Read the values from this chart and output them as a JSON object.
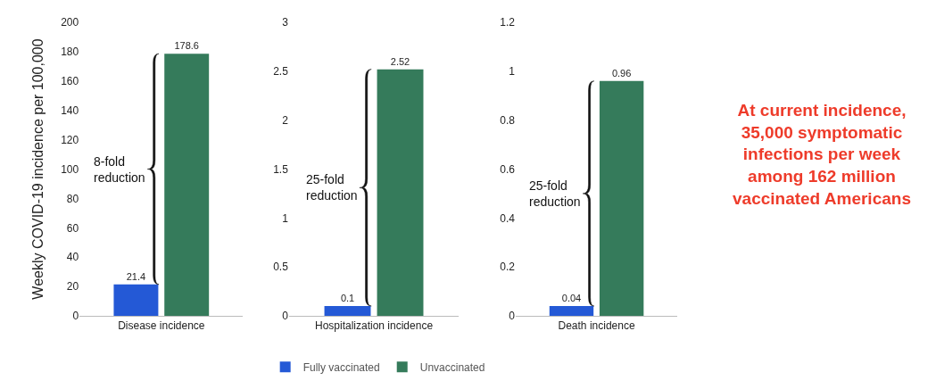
{
  "chart_data": [
    {
      "type": "bar",
      "ylabel": "Weekly COVID-19 incidence per 100,000",
      "categories": [
        "Disease incidence"
      ],
      "series": [
        {
          "name": "Fully vaccinated",
          "color": "#2459d6",
          "values": [
            21.4
          ]
        },
        {
          "name": "Unvaccinated",
          "color": "#357b5b",
          "values": [
            178.6
          ]
        }
      ],
      "ylim": [
        0,
        200
      ],
      "yticks": [
        0,
        20,
        40,
        60,
        80,
        100,
        120,
        140,
        160,
        180,
        200
      ],
      "data_labels": true,
      "grid": false,
      "legend": "bottom",
      "annotations": [
        "8-fold\nreduction"
      ]
    },
    {
      "type": "bar",
      "categories": [
        "Hospitalization incidence"
      ],
      "series": [
        {
          "color": "#2459d6",
          "values": [
            0.1
          ]
        },
        {
          "color": "#357b5b",
          "values": [
            2.52
          ]
        }
      ],
      "ylim": [
        0,
        3
      ],
      "yticks": [
        0,
        0.5,
        1,
        1.5,
        2,
        2.5,
        3
      ],
      "data_labels": true,
      "grid": false,
      "legend": false,
      "annotations": [
        "25-fold\nreduction"
      ]
    },
    {
      "type": "bar",
      "categories": [
        "Death incidence"
      ],
      "series": [
        {
          "color": "#2459d6",
          "values": [
            0.04
          ]
        },
        {
          "color": "#357b5b",
          "values": [
            0.96
          ]
        }
      ],
      "ylim": [
        0,
        1.2
      ],
      "yticks": [
        0,
        0.2,
        0.4,
        0.6,
        0.8,
        1,
        1.2
      ],
      "data_labels": true,
      "grid": false,
      "legend": false,
      "annotations": [
        "25-fold\nreduction"
      ]
    },
    {
      "type": "other",
      "annotations": [
        "At current incidence,\n35,000 symptomatic\ninfections per week\namong 162 million\nvaccinated Americans"
      ]
    }
  ]
}
